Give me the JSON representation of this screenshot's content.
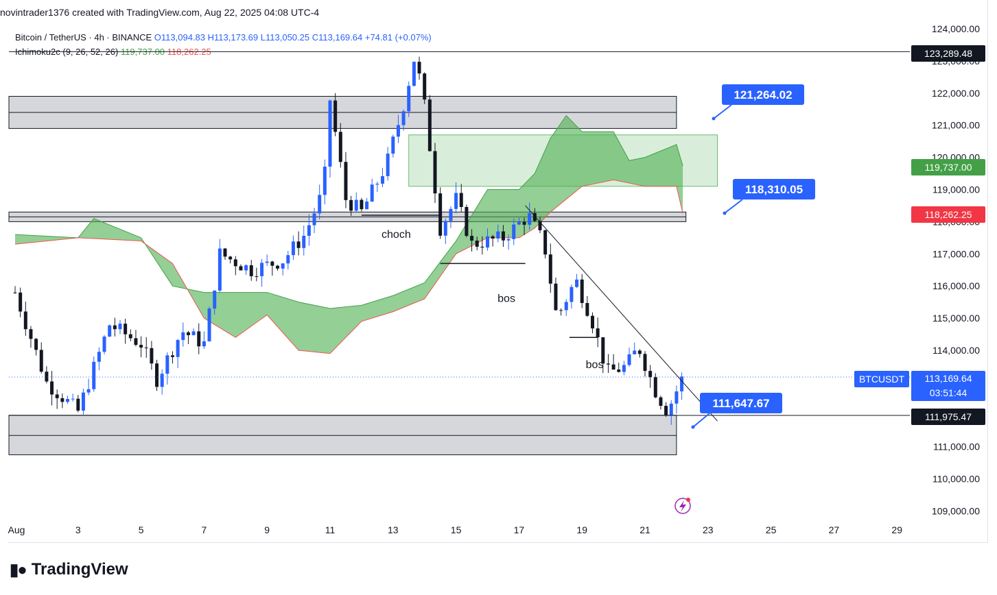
{
  "header": {
    "text": "novintrader1376 created with TradingView.com, Aug 22, 2025 04:08 UTC-4"
  },
  "legend": {
    "symbol": "Bitcoin / TetherUS · 4h · BINANCE",
    "open": "O113,094.83",
    "high": "H113,173.69",
    "low": "L113,050.25",
    "close": "C113,169.64",
    "change": "+74.81 (+0.07%)",
    "indicator": "Ichimoku2c (9, 26, 52, 26)",
    "ind_value1": "119,737.00",
    "ind_value2": "118,262.25"
  },
  "price_labels": {
    "top_line": "123,289.48",
    "cloud_a": "119,737.00",
    "cloud_b": "118,262.25",
    "symbol_tag": "BTCUSDT",
    "last_price": "113,169.64",
    "countdown": "03:51:44",
    "bottom_line": "111,975.47"
  },
  "colors": {
    "up": "#2962ff",
    "down": "#131722",
    "cloud": "#66bb6a",
    "callout": "#2962ff",
    "cloud_b_label": "#f23645",
    "cloud_a_label": "#43a047"
  },
  "brand": {
    "name": "TradingView"
  },
  "chart_data": {
    "type": "candlestick",
    "symbol": "BTCUSDT",
    "timeframe": "4h",
    "x_ticks": [
      "Aug",
      "3",
      "5",
      "7",
      "9",
      "11",
      "13",
      "15",
      "17",
      "19",
      "21",
      "23",
      "25",
      "27",
      "29"
    ],
    "x_tick_days": [
      1,
      3,
      5,
      7,
      9,
      11,
      13,
      15,
      17,
      19,
      21,
      23,
      25,
      27,
      29
    ],
    "y_ticks": [
      124000,
      123000,
      122000,
      121000,
      120000,
      119000,
      118000,
      117000,
      116000,
      115000,
      114000,
      113000,
      112000,
      111000,
      110000,
      109000
    ],
    "y_tick_labels": [
      "124,000.00",
      "123,000.00",
      "122,000.00",
      "121,000.00",
      "120,000.00",
      "119,000.00",
      "118,000.00",
      "117,000.00",
      "116,000.00",
      "115,000.00",
      "114,000.00",
      "113,000.00",
      "112,000.00",
      "111,000.00",
      "110,000.00",
      "109,000.00"
    ],
    "ylim": [
      108500,
      124300
    ],
    "key_points": [
      {
        "day": 1.0,
        "price": 115800
      },
      {
        "day": 2.0,
        "price": 113000
      },
      {
        "day": 3.0,
        "price": 112100
      },
      {
        "day": 4.0,
        "price": 114800
      },
      {
        "day": 5.0,
        "price": 114200
      },
      {
        "day": 5.5,
        "price": 113100
      },
      {
        "day": 6.3,
        "price": 114600
      },
      {
        "day": 7.0,
        "price": 114200
      },
      {
        "day": 7.5,
        "price": 117000
      },
      {
        "day": 8.5,
        "price": 116500
      },
      {
        "day": 9.5,
        "price": 116800
      },
      {
        "day": 10.2,
        "price": 117600
      },
      {
        "day": 10.8,
        "price": 119000
      },
      {
        "day": 11.0,
        "price": 121800
      },
      {
        "day": 11.5,
        "price": 118700
      },
      {
        "day": 12.0,
        "price": 118300
      },
      {
        "day": 12.8,
        "price": 119800
      },
      {
        "day": 13.3,
        "price": 121500
      },
      {
        "day": 13.7,
        "price": 123200
      },
      {
        "day": 14.0,
        "price": 121600
      },
      {
        "day": 14.5,
        "price": 117800
      },
      {
        "day": 15.0,
        "price": 118700
      },
      {
        "day": 15.5,
        "price": 117300
      },
      {
        "day": 16.5,
        "price": 117500
      },
      {
        "day": 17.3,
        "price": 118200
      },
      {
        "day": 17.8,
        "price": 117300
      },
      {
        "day": 18.2,
        "price": 115000
      },
      {
        "day": 18.8,
        "price": 116200
      },
      {
        "day": 19.3,
        "price": 115000
      },
      {
        "day": 19.8,
        "price": 113300
      },
      {
        "day": 20.4,
        "price": 113500
      },
      {
        "day": 20.8,
        "price": 114100
      },
      {
        "day": 21.3,
        "price": 112800
      },
      {
        "day": 21.7,
        "price": 112100
      },
      {
        "day": 22.2,
        "price": 113170
      }
    ],
    "cloud_upper": [
      {
        "day": 1.0,
        "price": 117600
      },
      {
        "day": 3.0,
        "price": 117500
      },
      {
        "day": 3.5,
        "price": 118100
      },
      {
        "day": 5.0,
        "price": 117500
      },
      {
        "day": 6.0,
        "price": 116000
      },
      {
        "day": 7.0,
        "price": 115800
      },
      {
        "day": 9.0,
        "price": 115800
      },
      {
        "day": 10.0,
        "price": 115500
      },
      {
        "day": 11.0,
        "price": 115300
      },
      {
        "day": 12.0,
        "price": 115400
      },
      {
        "day": 13.0,
        "price": 115700
      },
      {
        "day": 14.0,
        "price": 116100
      },
      {
        "day": 15.0,
        "price": 117400
      },
      {
        "day": 16.0,
        "price": 119000
      },
      {
        "day": 17.0,
        "price": 119000
      },
      {
        "day": 17.5,
        "price": 119500
      },
      {
        "day": 18.0,
        "price": 120600
      },
      {
        "day": 18.5,
        "price": 121300
      },
      {
        "day": 19.0,
        "price": 120800
      },
      {
        "day": 20.0,
        "price": 120800
      },
      {
        "day": 20.5,
        "price": 119900
      },
      {
        "day": 21.0,
        "price": 120000
      },
      {
        "day": 22.0,
        "price": 120400
      },
      {
        "day": 22.2,
        "price": 119737
      }
    ],
    "cloud_lower": [
      {
        "day": 1.0,
        "price": 117300
      },
      {
        "day": 3.0,
        "price": 117500
      },
      {
        "day": 5.0,
        "price": 117400
      },
      {
        "day": 6.0,
        "price": 116700
      },
      {
        "day": 7.0,
        "price": 115000
      },
      {
        "day": 8.0,
        "price": 114400
      },
      {
        "day": 9.0,
        "price": 115100
      },
      {
        "day": 10.0,
        "price": 114000
      },
      {
        "day": 11.0,
        "price": 113900
      },
      {
        "day": 12.0,
        "price": 114900
      },
      {
        "day": 13.0,
        "price": 115200
      },
      {
        "day": 14.0,
        "price": 115600
      },
      {
        "day": 15.0,
        "price": 117000
      },
      {
        "day": 16.0,
        "price": 117500
      },
      {
        "day": 17.0,
        "price": 117500
      },
      {
        "day": 17.5,
        "price": 117800
      },
      {
        "day": 18.0,
        "price": 118300
      },
      {
        "day": 18.5,
        "price": 118700
      },
      {
        "day": 19.0,
        "price": 119100
      },
      {
        "day": 20.0,
        "price": 119300
      },
      {
        "day": 21.0,
        "price": 119100
      },
      {
        "day": 22.0,
        "price": 119100
      },
      {
        "day": 22.2,
        "price": 118262
      }
    ],
    "zones": [
      {
        "day_start": 1.0,
        "day_end": 22.0,
        "top": 121900,
        "bottom": 120900,
        "mid": 121400,
        "kind": "supply"
      },
      {
        "day_start": 1.0,
        "day_end": 22.3,
        "top": 118300,
        "bottom": 118000,
        "mid": 118150,
        "kind": "level"
      },
      {
        "day_start": 1.0,
        "day_end": 22.0,
        "top": 111980,
        "bottom": 110750,
        "mid": 111350,
        "kind": "demand"
      },
      {
        "day_start": 13.5,
        "day_end": 23.3,
        "top": 120700,
        "bottom": 119100,
        "kind": "target"
      }
    ],
    "lines": [
      {
        "name": "top-line",
        "price": 123289.48
      },
      {
        "name": "bottom-line",
        "price": 111975.47
      },
      {
        "name": "last-price",
        "price": 113169.64
      }
    ],
    "trendline": {
      "day_start": 17.2,
      "price_start": 118500,
      "day_end": 23.3,
      "price_end": 111800
    },
    "structure_lines": [
      {
        "label": "choch",
        "day_start": 12.0,
        "day_end": 14.5,
        "price": 118200,
        "label_day": 13.1,
        "label_price": 117500
      },
      {
        "label": "bos",
        "day_start": 14.5,
        "day_end": 17.2,
        "price": 116700,
        "label_day": 16.6,
        "label_price": 115500
      },
      {
        "label": "bos",
        "day_start": 18.6,
        "day_end": 19.5,
        "price": 114400,
        "label_day": 19.4,
        "label_price": 113450
      }
    ],
    "callouts": [
      {
        "text": "121,264.02",
        "anchor_day": 21.5,
        "anchor_price": 121200,
        "box_day": 22.0,
        "box_price": 121000
      },
      {
        "text": "118,310.05",
        "anchor_day": 21.2,
        "anchor_price": 118150,
        "box_day": 22.2,
        "box_price": 118600
      },
      {
        "text": "111,647.67",
        "anchor_day": 21.0,
        "anchor_price": 111600,
        "box_day": 22.0,
        "box_price": 111900
      }
    ]
  }
}
